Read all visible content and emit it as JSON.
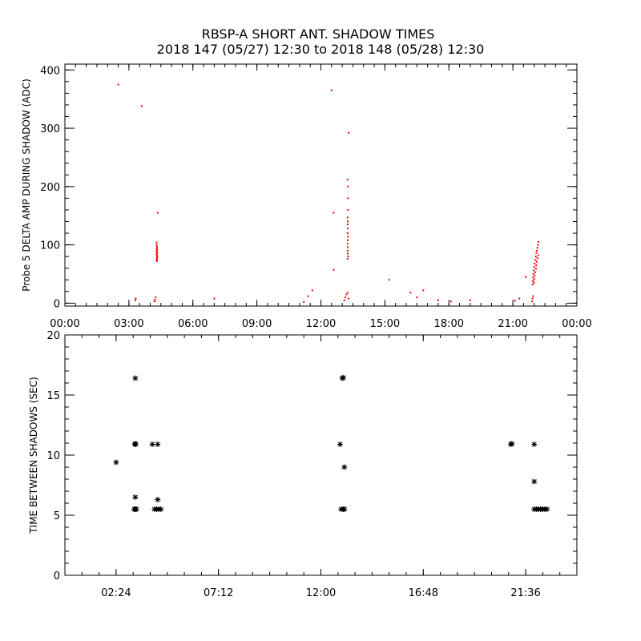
{
  "title_line1": "RBSP-A SHORT ANT. SHADOW TIMES",
  "title_line2": "2018 147 (05/27) 12:30 to 2018 148 (05/28) 12:30",
  "chart_data": [
    {
      "type": "scatter",
      "ylabel": "Probe 5 DELTA AMP DURING SHADOW (ADC)",
      "xlim": [
        0,
        24
      ],
      "ylim": [
        -5,
        410
      ],
      "x_ticks": [
        0,
        3,
        6,
        9,
        12,
        15,
        18,
        21,
        24
      ],
      "x_tick_labels": [
        "00:00",
        "03:00",
        "06:00",
        "09:00",
        "12:00",
        "15:00",
        "18:00",
        "21:00",
        "00:00"
      ],
      "y_ticks": [
        0,
        100,
        200,
        300,
        400
      ],
      "y_tick_labels": [
        "0",
        "100",
        "200",
        "300",
        "400"
      ],
      "point_color": "#ff0000",
      "points": [
        [
          2.5,
          375
        ],
        [
          3.6,
          338
        ],
        [
          4.35,
          155
        ],
        [
          4.3,
          104
        ],
        [
          4.3,
          100
        ],
        [
          4.32,
          97
        ],
        [
          4.3,
          94
        ],
        [
          4.33,
          92
        ],
        [
          4.31,
          90
        ],
        [
          4.3,
          88
        ],
        [
          4.32,
          86
        ],
        [
          4.31,
          84
        ],
        [
          4.3,
          82
        ],
        [
          4.33,
          80
        ],
        [
          4.32,
          78
        ],
        [
          4.31,
          76
        ],
        [
          4.3,
          74
        ],
        [
          4.32,
          72
        ],
        [
          3.3,
          5
        ],
        [
          3.32,
          8
        ],
        [
          4.2,
          3
        ],
        [
          4.22,
          6
        ],
        [
          4.25,
          10
        ],
        [
          7.0,
          8
        ],
        [
          11.2,
          2
        ],
        [
          11.4,
          12
        ],
        [
          11.6,
          22
        ],
        [
          12.5,
          365
        ],
        [
          12.6,
          155
        ],
        [
          12.6,
          57
        ],
        [
          13.3,
          292
        ],
        [
          13.25,
          212
        ],
        [
          13.27,
          200
        ],
        [
          13.26,
          180
        ],
        [
          13.27,
          160
        ],
        [
          13.25,
          147
        ],
        [
          13.26,
          140
        ],
        [
          13.25,
          135
        ],
        [
          13.26,
          128
        ],
        [
          13.25,
          120
        ],
        [
          13.27,
          114
        ],
        [
          13.26,
          108
        ],
        [
          13.25,
          102
        ],
        [
          13.26,
          96
        ],
        [
          13.25,
          90
        ],
        [
          13.26,
          85
        ],
        [
          13.27,
          80
        ],
        [
          13.25,
          76
        ],
        [
          13.1,
          5
        ],
        [
          13.15,
          10
        ],
        [
          13.2,
          15
        ],
        [
          13.25,
          18
        ],
        [
          13.3,
          8
        ],
        [
          15.2,
          40
        ],
        [
          16.2,
          18
        ],
        [
          16.5,
          10
        ],
        [
          16.8,
          22
        ],
        [
          17.5,
          5
        ],
        [
          18.1,
          3
        ],
        [
          19.0,
          5
        ],
        [
          21.1,
          4
        ],
        [
          21.3,
          8
        ],
        [
          21.6,
          45
        ],
        [
          22.2,
          105
        ],
        [
          22.18,
          100
        ],
        [
          22.15,
          95
        ],
        [
          22.12,
          90
        ],
        [
          22.1,
          86
        ],
        [
          22.2,
          82
        ],
        [
          22.08,
          80
        ],
        [
          22.15,
          77
        ],
        [
          22.05,
          74
        ],
        [
          22.12,
          71
        ],
        [
          22.02,
          68
        ],
        [
          22.1,
          65
        ],
        [
          22.0,
          62
        ],
        [
          22.08,
          59
        ],
        [
          21.98,
          56
        ],
        [
          22.05,
          53
        ],
        [
          21.96,
          50
        ],
        [
          22.02,
          47
        ],
        [
          21.95,
          44
        ],
        [
          22.0,
          41
        ],
        [
          21.93,
          38
        ],
        [
          21.98,
          35
        ],
        [
          21.92,
          32
        ],
        [
          21.9,
          3
        ],
        [
          21.92,
          8
        ],
        [
          21.95,
          12
        ]
      ]
    },
    {
      "type": "scatter",
      "ylabel": "TIME BETWEEN SHADOWS (SEC)",
      "xlim": [
        0,
        24
      ],
      "ylim": [
        0,
        20
      ],
      "x_ticks": [
        2.4,
        7.2,
        12.0,
        16.8,
        21.6
      ],
      "x_tick_labels": [
        "02:24",
        "07:12",
        "12:00",
        "16:48",
        "21:36"
      ],
      "y_ticks": [
        0,
        5,
        10,
        15,
        20
      ],
      "y_tick_labels": [
        "0",
        "5",
        "10",
        "15",
        "20"
      ],
      "point_color": "#000000",
      "points": [
        [
          2.4,
          9.4
        ],
        [
          3.3,
          16.4
        ],
        [
          3.3,
          10.9
        ],
        [
          3.28,
          10.95
        ],
        [
          3.32,
          10.9
        ],
        [
          3.3,
          6.5
        ],
        [
          3.3,
          5.5
        ],
        [
          3.25,
          5.5
        ],
        [
          3.35,
          5.5
        ],
        [
          4.1,
          10.9
        ],
        [
          4.35,
          10.9
        ],
        [
          4.2,
          5.5
        ],
        [
          4.3,
          5.5
        ],
        [
          4.4,
          5.5
        ],
        [
          4.5,
          5.5
        ],
        [
          4.35,
          6.3
        ],
        [
          13.0,
          16.4
        ],
        [
          13.05,
          16.45
        ],
        [
          12.9,
          10.9
        ],
        [
          13.1,
          9.0
        ],
        [
          12.95,
          5.5
        ],
        [
          13.05,
          5.5
        ],
        [
          13.1,
          5.5
        ],
        [
          20.9,
          10.9
        ],
        [
          20.95,
          10.95
        ],
        [
          22.0,
          10.9
        ],
        [
          22.0,
          7.8
        ],
        [
          22.0,
          5.5
        ],
        [
          22.1,
          5.5
        ],
        [
          22.2,
          5.5
        ],
        [
          22.3,
          5.5
        ],
        [
          22.4,
          5.5
        ],
        [
          22.5,
          5.5
        ],
        [
          22.6,
          5.5
        ]
      ]
    }
  ]
}
